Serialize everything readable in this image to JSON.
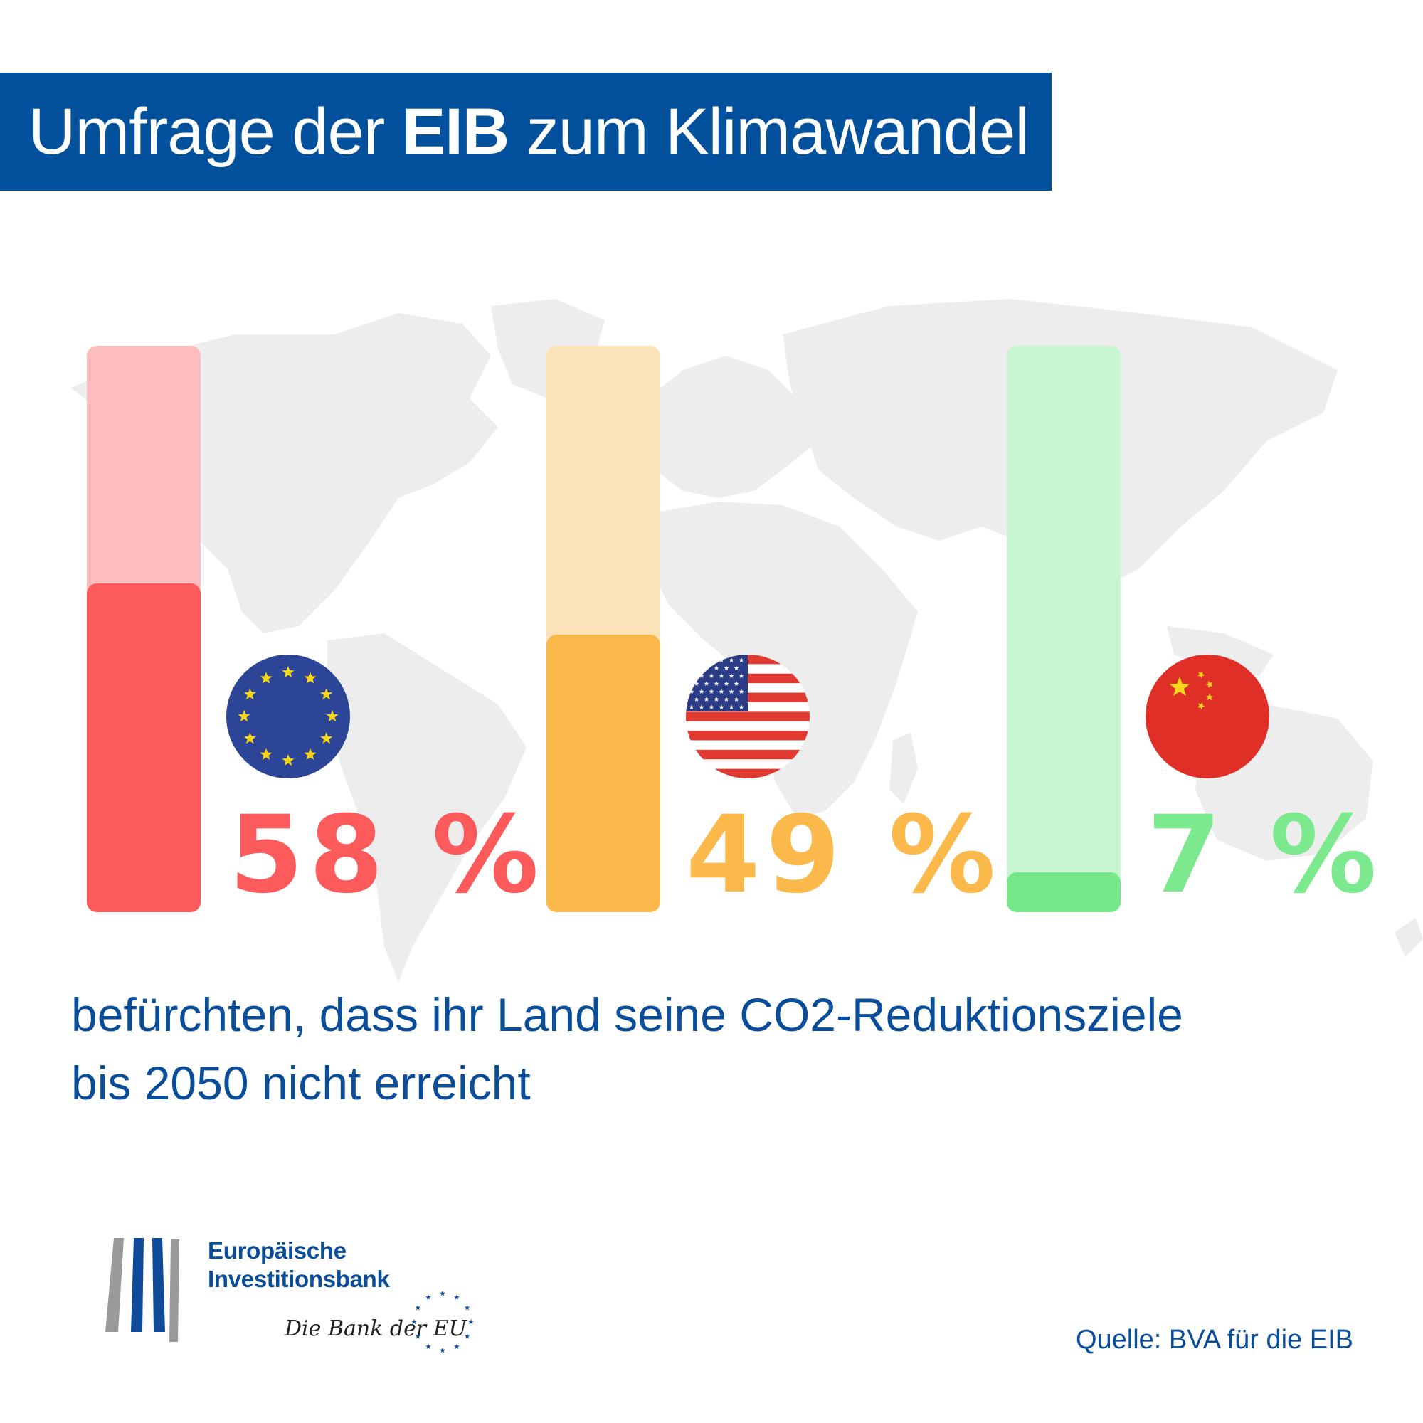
{
  "title": {
    "prefix": "Umfrage der ",
    "bold": "EIB",
    "suffix": " zum Klimawandel"
  },
  "chart_data": {
    "type": "bar",
    "categories": [
      "EU",
      "USA",
      "China"
    ],
    "values": [
      58,
      49,
      7
    ],
    "value_labels": [
      "58 %",
      "49 %",
      "7 %"
    ],
    "ylim": [
      0,
      100
    ],
    "colors": {
      "fill": [
        "#fd5a5c",
        "#fab84b",
        "#77e88a"
      ],
      "track": [
        "#fdbcbd",
        "#fbe2b8",
        "#c8f6d1"
      ],
      "label": [
        "#fd5a5c",
        "#fbb94c",
        "#7de98e"
      ]
    },
    "flags": [
      "eu-flag",
      "us-flag",
      "china-flag"
    ]
  },
  "caption": {
    "line1": "befürchten, dass ihr Land seine CO2-Reduktionsziele",
    "line2": "bis 2050 nicht erreicht"
  },
  "logo": {
    "line1": "Europäische",
    "line2": "Investitionsbank",
    "slogan": "Die Bank der EU"
  },
  "source": "Quelle: BVA für die EIB",
  "colors": {
    "title_bar": "#03509c",
    "text_blue": "#0a4d9a",
    "map": "#ececec"
  }
}
